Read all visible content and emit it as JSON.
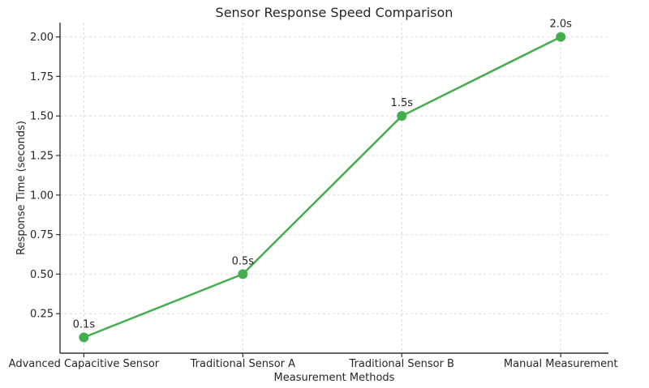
{
  "chart_data": {
    "type": "line",
    "title": "Sensor Response Speed Comparison",
    "xlabel": "Measurement Methods",
    "ylabel": "Response Time (seconds)",
    "categories": [
      "Advanced Capacitive Sensor",
      "Traditional Sensor A",
      "Traditional Sensor B",
      "Manual Measurement"
    ],
    "series": [
      {
        "name": "Response Time",
        "values": [
          0.1,
          0.5,
          1.5,
          2.0
        ]
      }
    ],
    "point_labels": [
      "0.1s",
      "0.5s",
      "1.5s",
      "2.0s"
    ],
    "yticks": [
      0.25,
      0.5,
      0.75,
      1.0,
      1.25,
      1.5,
      1.75,
      2.0
    ],
    "ytick_labels": [
      "0.25",
      "0.50",
      "0.75",
      "1.00",
      "1.25",
      "1.50",
      "1.75",
      "2.00"
    ],
    "ylim": [
      0,
      2.09
    ],
    "grid": true,
    "legend": false,
    "colors": {
      "line": "#44ad4f",
      "marker": "#44ad4f",
      "grid": "#dcdcdc",
      "spine": "#333333",
      "text": "#262626",
      "background": "#ffffff"
    }
  }
}
